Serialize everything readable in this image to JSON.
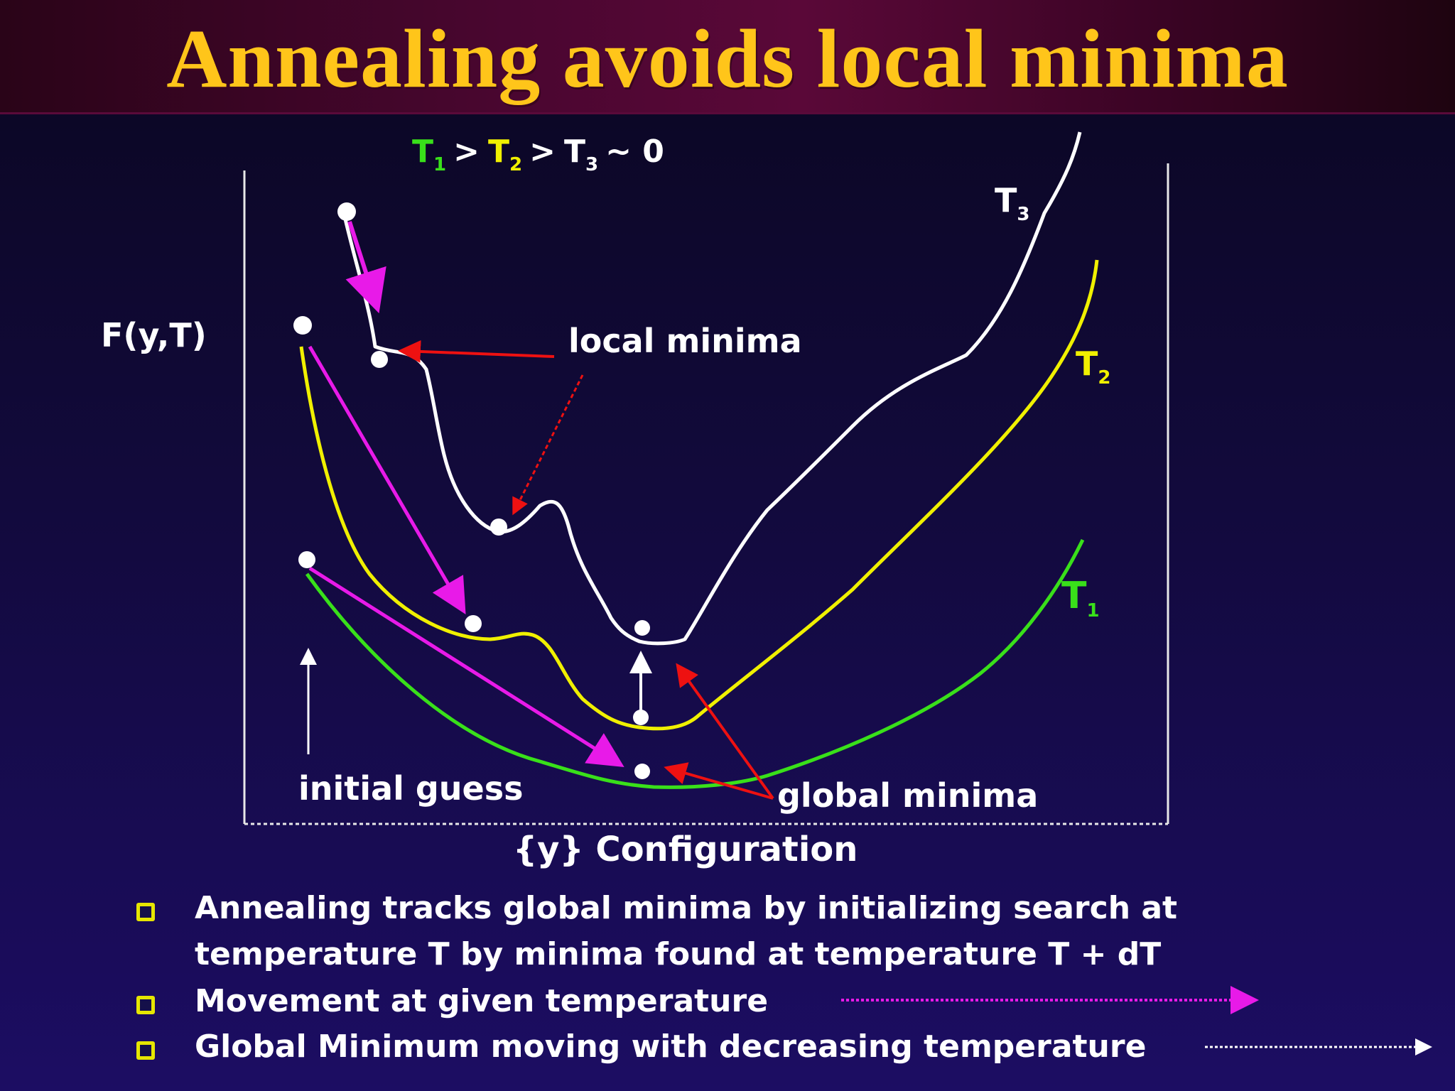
{
  "title": "Annealing avoids local minima",
  "temperature_order": {
    "t1": "T",
    "t1_sub": "1",
    "gt1": ">",
    "t2": "T",
    "t2_sub": "2",
    "gt2": ">",
    "t3": "T",
    "t3_sub": "3",
    "approx": "~ 0"
  },
  "axis": {
    "y_label": "F(y,T)",
    "x_label": "{y} Configuration"
  },
  "curve_labels": {
    "t3": "T",
    "t3_sub": "3",
    "t2": "T",
    "t2_sub": "2",
    "t1": "T",
    "t1_sub": "1"
  },
  "annotations": {
    "local_minima": "local minima",
    "global_minima": "global minima",
    "initial_guess": "initial guess"
  },
  "bullets": [
    {
      "line1": "Annealing tracks global minima by initializing search at",
      "line2": "temperature T by minima found at temperature T + dT"
    },
    {
      "line1": "Movement at given temperature"
    },
    {
      "line1": "Global Minimum moving with decreasing temperature"
    }
  ],
  "colors": {
    "title": "#ffc51a",
    "curve_t1": "#39e01a",
    "curve_t2": "#f0f000",
    "curve_t3": "#ffffff",
    "movement_arrow": "#e81ae8",
    "annotation_arrow": "#ee1111",
    "bullet_marker": "#e6e600"
  }
}
